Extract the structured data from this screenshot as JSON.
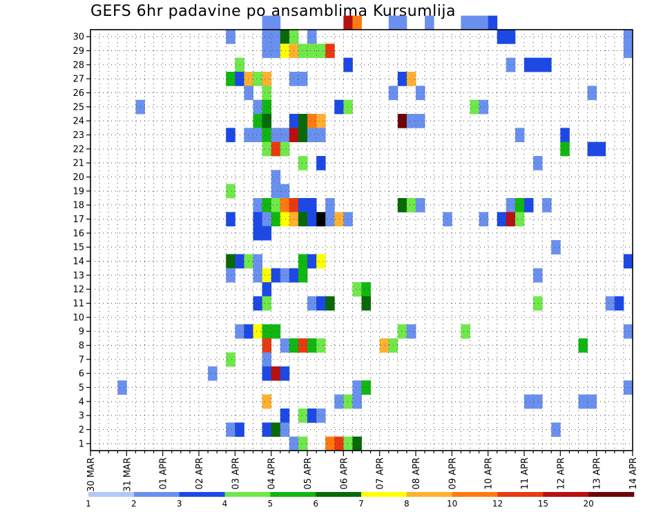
{
  "chart_data": {
    "type": "heatmap",
    "title": "GEFS 6hr padavine po ansamblima Kursumlija",
    "xlabel": "",
    "ylabel": "",
    "y_members": [
      1,
      30
    ],
    "y_ticks": [
      1,
      2,
      3,
      4,
      5,
      6,
      7,
      8,
      9,
      10,
      11,
      12,
      13,
      14,
      15,
      16,
      17,
      18,
      19,
      20,
      21,
      22,
      23,
      24,
      25,
      26,
      27,
      28,
      29,
      30
    ],
    "x_steps_per_day": 4,
    "x_ticks": [
      "30 MAR",
      "31 MAR",
      "01 APR",
      "02 APR",
      "03 APR",
      "04 APR",
      "05 APR",
      "06 APR",
      "07 APR",
      "08 APR",
      "09 APR",
      "10 APR",
      "11 APR",
      "12 APR",
      "13 APR",
      "14 APR"
    ],
    "grid": true,
    "colorbar": {
      "position": "bottom",
      "labels": [
        "1",
        "2",
        "3",
        "4",
        "5",
        "6",
        "7",
        "8",
        "10",
        "12",
        "15",
        "20"
      ],
      "colors": [
        "#b4c8f7",
        "#6a90ef",
        "#1c49e6",
        "#6fe84a",
        "#10b710",
        "#076a07",
        "#ffff00",
        "#ffb030",
        "#ff7a10",
        "#e83a10",
        "#b81010",
        "#6e0505"
      ]
    },
    "cells": [
      [
        30,
        19,
        1
      ],
      [
        30,
        20,
        1
      ],
      [
        30,
        28,
        10
      ],
      [
        30,
        29,
        8
      ],
      [
        30,
        33,
        1
      ],
      [
        30,
        34,
        1
      ],
      [
        30,
        37,
        1
      ],
      [
        30,
        41,
        1
      ],
      [
        30,
        42,
        1
      ],
      [
        30,
        43,
        1
      ],
      [
        30,
        44,
        2
      ],
      [
        29,
        15,
        1
      ],
      [
        29,
        19,
        1
      ],
      [
        29,
        20,
        1
      ],
      [
        29,
        21,
        5
      ],
      [
        29,
        22,
        3
      ],
      [
        29,
        24,
        1
      ],
      [
        29,
        45,
        2
      ],
      [
        29,
        46,
        2
      ],
      [
        29,
        59,
        1
      ],
      [
        28,
        19,
        1
      ],
      [
        28,
        20,
        1
      ],
      [
        28,
        21,
        6
      ],
      [
        28,
        22,
        7
      ],
      [
        28,
        23,
        3
      ],
      [
        28,
        24,
        3
      ],
      [
        28,
        25,
        3
      ],
      [
        28,
        26,
        9
      ],
      [
        28,
        59,
        1
      ],
      [
        27,
        16,
        3
      ],
      [
        27,
        28,
        2
      ],
      [
        27,
        46,
        1
      ],
      [
        27,
        48,
        2
      ],
      [
        27,
        49,
        2
      ],
      [
        27,
        50,
        2
      ],
      [
        26,
        15,
        4
      ],
      [
        26,
        16,
        2
      ],
      [
        26,
        17,
        7
      ],
      [
        26,
        18,
        3
      ],
      [
        26,
        19,
        7
      ],
      [
        26,
        22,
        1
      ],
      [
        26,
        23,
        1
      ],
      [
        26,
        34,
        2
      ],
      [
        26,
        35,
        7
      ],
      [
        25,
        17,
        1
      ],
      [
        25,
        19,
        3
      ],
      [
        25,
        33,
        1
      ],
      [
        25,
        36,
        1
      ],
      [
        25,
        55,
        1
      ],
      [
        24,
        5,
        1
      ],
      [
        24,
        18,
        1
      ],
      [
        24,
        19,
        4
      ],
      [
        24,
        27,
        2
      ],
      [
        24,
        28,
        3
      ],
      [
        24,
        42,
        3
      ],
      [
        24,
        43,
        1
      ],
      [
        23,
        18,
        4
      ],
      [
        23,
        19,
        5
      ],
      [
        23,
        22,
        2
      ],
      [
        23,
        23,
        5
      ],
      [
        23,
        24,
        8
      ],
      [
        23,
        25,
        7
      ],
      [
        23,
        34,
        11
      ],
      [
        23,
        35,
        1
      ],
      [
        23,
        36,
        1
      ],
      [
        22,
        15,
        2
      ],
      [
        22,
        17,
        1
      ],
      [
        22,
        18,
        1
      ],
      [
        22,
        19,
        4
      ],
      [
        22,
        20,
        1
      ],
      [
        22,
        21,
        1
      ],
      [
        22,
        22,
        10
      ],
      [
        22,
        23,
        5
      ],
      [
        22,
        24,
        1
      ],
      [
        22,
        25,
        1
      ],
      [
        22,
        47,
        1
      ],
      [
        22,
        52,
        2
      ],
      [
        21,
        19,
        3
      ],
      [
        21,
        20,
        9
      ],
      [
        21,
        21,
        3
      ],
      [
        21,
        52,
        4
      ],
      [
        21,
        55,
        2
      ],
      [
        21,
        56,
        2
      ],
      [
        20,
        23,
        3
      ],
      [
        20,
        25,
        2
      ],
      [
        20,
        49,
        1
      ],
      [
        19,
        20,
        1
      ],
      [
        18,
        15,
        3
      ],
      [
        18,
        20,
        1
      ],
      [
        18,
        21,
        1
      ],
      [
        17,
        18,
        1
      ],
      [
        17,
        19,
        4
      ],
      [
        17,
        20,
        3
      ],
      [
        17,
        21,
        8
      ],
      [
        17,
        22,
        9
      ],
      [
        17,
        23,
        2
      ],
      [
        17,
        24,
        2
      ],
      [
        17,
        26,
        1
      ],
      [
        17,
        34,
        5
      ],
      [
        17,
        35,
        3
      ],
      [
        17,
        36,
        1
      ],
      [
        17,
        46,
        1
      ],
      [
        17,
        47,
        4
      ],
      [
        17,
        48,
        2
      ],
      [
        17,
        50,
        1
      ],
      [
        16,
        15,
        2
      ],
      [
        16,
        18,
        2
      ],
      [
        16,
        19,
        1
      ],
      [
        16,
        20,
        4
      ],
      [
        16,
        21,
        6
      ],
      [
        16,
        22,
        7
      ],
      [
        16,
        23,
        5
      ],
      [
        16,
        24,
        2
      ],
      [
        16,
        25,
        12
      ],
      [
        16,
        26,
        1
      ],
      [
        16,
        27,
        7
      ],
      [
        16,
        28,
        1
      ],
      [
        16,
        39,
        1
      ],
      [
        16,
        43,
        1
      ],
      [
        16,
        45,
        2
      ],
      [
        16,
        46,
        10
      ],
      [
        16,
        47,
        3
      ],
      [
        15,
        18,
        2
      ],
      [
        15,
        19,
        2
      ],
      [
        14,
        51,
        1
      ],
      [
        13,
        15,
        5
      ],
      [
        13,
        16,
        2
      ],
      [
        13,
        17,
        3
      ],
      [
        13,
        18,
        1
      ],
      [
        13,
        23,
        4
      ],
      [
        13,
        24,
        2
      ],
      [
        13,
        25,
        6
      ],
      [
        13,
        59,
        2
      ],
      [
        12,
        15,
        1
      ],
      [
        12,
        18,
        1
      ],
      [
        12,
        19,
        6
      ],
      [
        12,
        20,
        2
      ],
      [
        12,
        21,
        1
      ],
      [
        12,
        22,
        2
      ],
      [
        12,
        23,
        4
      ],
      [
        12,
        49,
        1
      ],
      [
        11,
        19,
        2
      ],
      [
        11,
        29,
        3
      ],
      [
        11,
        30,
        4
      ],
      [
        10,
        18,
        2
      ],
      [
        10,
        19,
        3
      ],
      [
        10,
        24,
        1
      ],
      [
        10,
        25,
        2
      ],
      [
        10,
        26,
        5
      ],
      [
        10,
        30,
        5
      ],
      [
        10,
        49,
        3
      ],
      [
        10,
        57,
        1
      ],
      [
        10,
        58,
        2
      ],
      [
        8,
        16,
        1
      ],
      [
        8,
        17,
        2
      ],
      [
        8,
        18,
        6
      ],
      [
        8,
        19,
        4
      ],
      [
        8,
        20,
        4
      ],
      [
        8,
        34,
        3
      ],
      [
        8,
        35,
        1
      ],
      [
        8,
        41,
        3
      ],
      [
        8,
        59,
        1
      ],
      [
        7,
        19,
        9
      ],
      [
        7,
        21,
        1
      ],
      [
        7,
        22,
        4
      ],
      [
        7,
        23,
        9
      ],
      [
        7,
        24,
        4
      ],
      [
        7,
        25,
        3
      ],
      [
        7,
        32,
        7
      ],
      [
        7,
        33,
        3
      ],
      [
        7,
        54,
        4
      ],
      [
        6,
        15,
        3
      ],
      [
        6,
        19,
        1
      ],
      [
        5,
        13,
        1
      ],
      [
        5,
        19,
        2
      ],
      [
        5,
        20,
        10
      ],
      [
        5,
        21,
        2
      ],
      [
        4,
        3,
        1
      ],
      [
        4,
        29,
        1
      ],
      [
        4,
        30,
        4
      ],
      [
        4,
        59,
        1
      ],
      [
        3,
        19,
        7
      ],
      [
        3,
        27,
        1
      ],
      [
        3,
        28,
        3
      ],
      [
        3,
        29,
        1
      ],
      [
        3,
        48,
        1
      ],
      [
        3,
        49,
        1
      ],
      [
        3,
        54,
        1
      ],
      [
        3,
        55,
        1
      ],
      [
        2,
        21,
        2
      ],
      [
        2,
        23,
        3
      ],
      [
        2,
        24,
        2
      ],
      [
        2,
        25,
        1
      ],
      [
        1,
        15,
        1
      ],
      [
        1,
        16,
        2
      ],
      [
        1,
        19,
        2
      ],
      [
        1,
        20,
        5
      ],
      [
        1,
        21,
        1
      ],
      [
        1,
        51,
        1
      ],
      [
        0,
        22,
        1
      ],
      [
        0,
        23,
        3
      ],
      [
        0,
        26,
        8
      ],
      [
        0,
        27,
        9
      ],
      [
        0,
        28,
        3
      ],
      [
        0,
        29,
        5
      ]
    ]
  }
}
